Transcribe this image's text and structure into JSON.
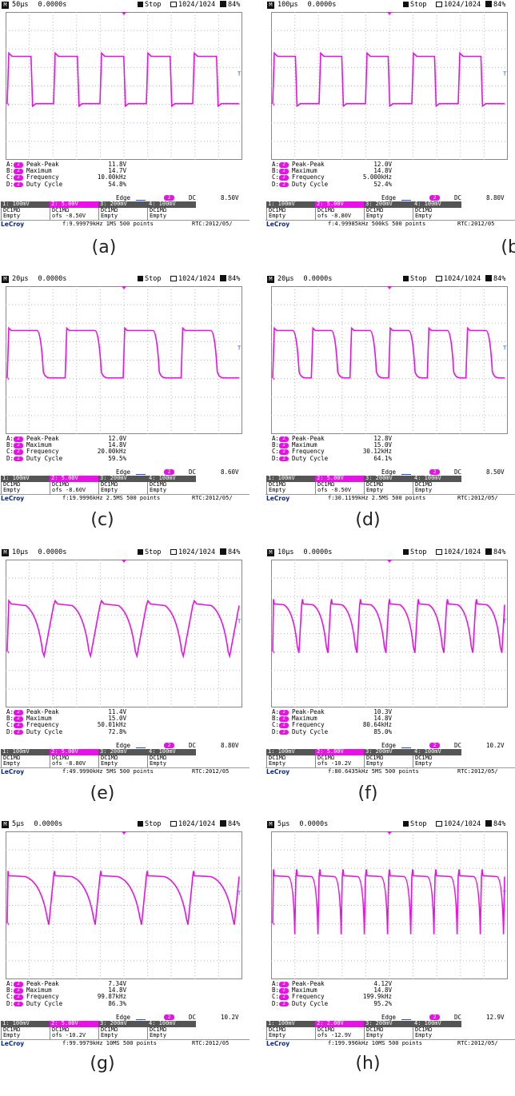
{
  "panels": [
    {
      "label": "(a)",
      "time_div": "50µs",
      "delay": "0.0000s",
      "status": "Stop",
      "acq": "1024/1024",
      "pct": "84%",
      "meas": {
        "pkpk": "11.8V",
        "max": "14.7V",
        "freq": "10.00kHz",
        "duty": "54.8%"
      },
      "trig_level": "8.50V",
      "ofs": "ofs   -8.50V",
      "info": "f:9.99979kHz  1MS  500 points",
      "rtc": "RTC:2012/05/",
      "ch2_scale": "2: 5.00V",
      "cycles": 5,
      "duty": 0.548,
      "shape": "square"
    },
    {
      "label": "(b)",
      "time_div": "100µs",
      "delay": "0.0000s",
      "status": "Stop",
      "acq": "1024/1024",
      "pct": "84%",
      "meas": {
        "pkpk": "12.0V",
        "max": "14.8V",
        "freq": "5.000kHz",
        "duty": "52.4%"
      },
      "trig_level": "8.80V",
      "ofs": "ofs   -8.80V",
      "info": "f:4.99985kHz  500kS 500 points",
      "rtc": "RTC:2012/05",
      "ch2_scale": "2: 5.00V",
      "cycles": 5,
      "duty": 0.524,
      "shape": "square"
    },
    {
      "label": "(c)",
      "time_div": "20µs",
      "delay": "0.0000s",
      "status": "Stop",
      "acq": "1024/1024",
      "pct": "84%",
      "meas": {
        "pkpk": "12.0V",
        "max": "14.8V",
        "freq": "20.00kHz",
        "duty": "59.5%"
      },
      "trig_level": "8.60V",
      "ofs": "ofs   -8.60V",
      "info": "f:19.9996kHz  2.5MS 500 points",
      "rtc": "RTC:2012/05/",
      "ch2_scale": "2: 5.00V",
      "cycles": 4,
      "duty": 0.595,
      "shape": "rounded"
    },
    {
      "label": "(d)",
      "time_div": "20µs",
      "delay": "0.0000s",
      "status": "Stop",
      "acq": "1024/1024",
      "pct": "84%",
      "meas": {
        "pkpk": "12.8V",
        "max": "15.0V",
        "freq": "30.12kHz",
        "duty": "64.1%"
      },
      "trig_level": "8.50V",
      "ofs": "ofs   -8.50V",
      "info": "f:30.1199kHz  2.5MS 500 points",
      "rtc": "RTC:2012/05/",
      "ch2_scale": "2: 5.00V",
      "cycles": 6,
      "duty": 0.641,
      "shape": "rounded"
    },
    {
      "label": "(e)",
      "time_div": "10µs",
      "delay": "0.0000s",
      "status": "Stop",
      "acq": "1024/1024",
      "pct": "84%",
      "meas": {
        "pkpk": "11.4V",
        "max": "15.0V",
        "freq": "50.01kHz",
        "duty": "72.8%"
      },
      "trig_level": "8.80V",
      "ofs": "ofs   -8.80V",
      "info": "f:49.9990kHz  5MS  500 points",
      "rtc": "RTC:2012/05",
      "ch2_scale": "2: 5.00V",
      "cycles": 5,
      "duty": 0.728,
      "shape": "decay"
    },
    {
      "label": "(f)",
      "time_div": "10µs",
      "delay": "0.0000s",
      "status": "Stop",
      "acq": "1024/1024",
      "pct": "84%",
      "meas": {
        "pkpk": "10.3V",
        "max": "14.8V",
        "freq": "80.64kHz",
        "duty": "85.0%"
      },
      "trig_level": "10.2V",
      "ofs": "ofs   -10.2V",
      "info": "f:80.6435kHz  5MS  500 points",
      "rtc": "RTC:2012/05/",
      "ch2_scale": "2: 5.00V",
      "cycles": 8,
      "duty": 0.85,
      "shape": "spike"
    },
    {
      "label": "(g)",
      "time_div": "5µs",
      "delay": "0.0000s",
      "status": "Stop",
      "acq": "1024/1024",
      "pct": "84%",
      "meas": {
        "pkpk": "7.34V",
        "max": "14.8V",
        "freq": "99.87kHz",
        "duty": "86.3%"
      },
      "trig_level": "10.2V",
      "ofs": "ofs   -10.2V",
      "info": "f:99.9979kHz  10MS  500 points",
      "rtc": "RTC:2012/05",
      "ch2_scale": "2: 5.00V",
      "cycles": 5,
      "duty": 0.863,
      "shape": "spike"
    },
    {
      "label": "(h)",
      "time_div": "5µs",
      "delay": "0.0000s",
      "status": "Stop",
      "acq": "1024/1024",
      "pct": "84%",
      "meas": {
        "pkpk": "4.12V",
        "max": "14.8V",
        "freq": "199.9kHz",
        "duty": "95.2%"
      },
      "trig_level": "12.9V",
      "ofs": "ofs   -12.9V",
      "info": "f:199.996kHz  10MS  500 points",
      "rtc": "RTC:2012/05/",
      "ch2_scale": "2: 2.00V",
      "cycles": 10,
      "duty": 0.952,
      "shape": "needle"
    }
  ],
  "common": {
    "m_letter": "M",
    "meas_ids": [
      "A:",
      "B:",
      "C:",
      "D:"
    ],
    "meas_names": [
      "Peak-Peak",
      "Maximum",
      "Frequency",
      "Duty Cycle"
    ],
    "meas_channel": "2",
    "trig_edge": "Edge",
    "trig_channel": "2",
    "trig_coupling": "DC",
    "ch1": [
      "1: 100mV",
      "DC1MΩ",
      "Empty"
    ],
    "ch2_rows": [
      "DC1MΩ"
    ],
    "ch3": [
      "3: 200mV",
      "DC1MΩ",
      "Empty"
    ],
    "ch4": [
      "4: 100mV",
      "DC1MΩ",
      "Empty"
    ],
    "brand": "LeCroy",
    "trace_color": "#e812e8",
    "grid_color": "#b8b8b8"
  }
}
